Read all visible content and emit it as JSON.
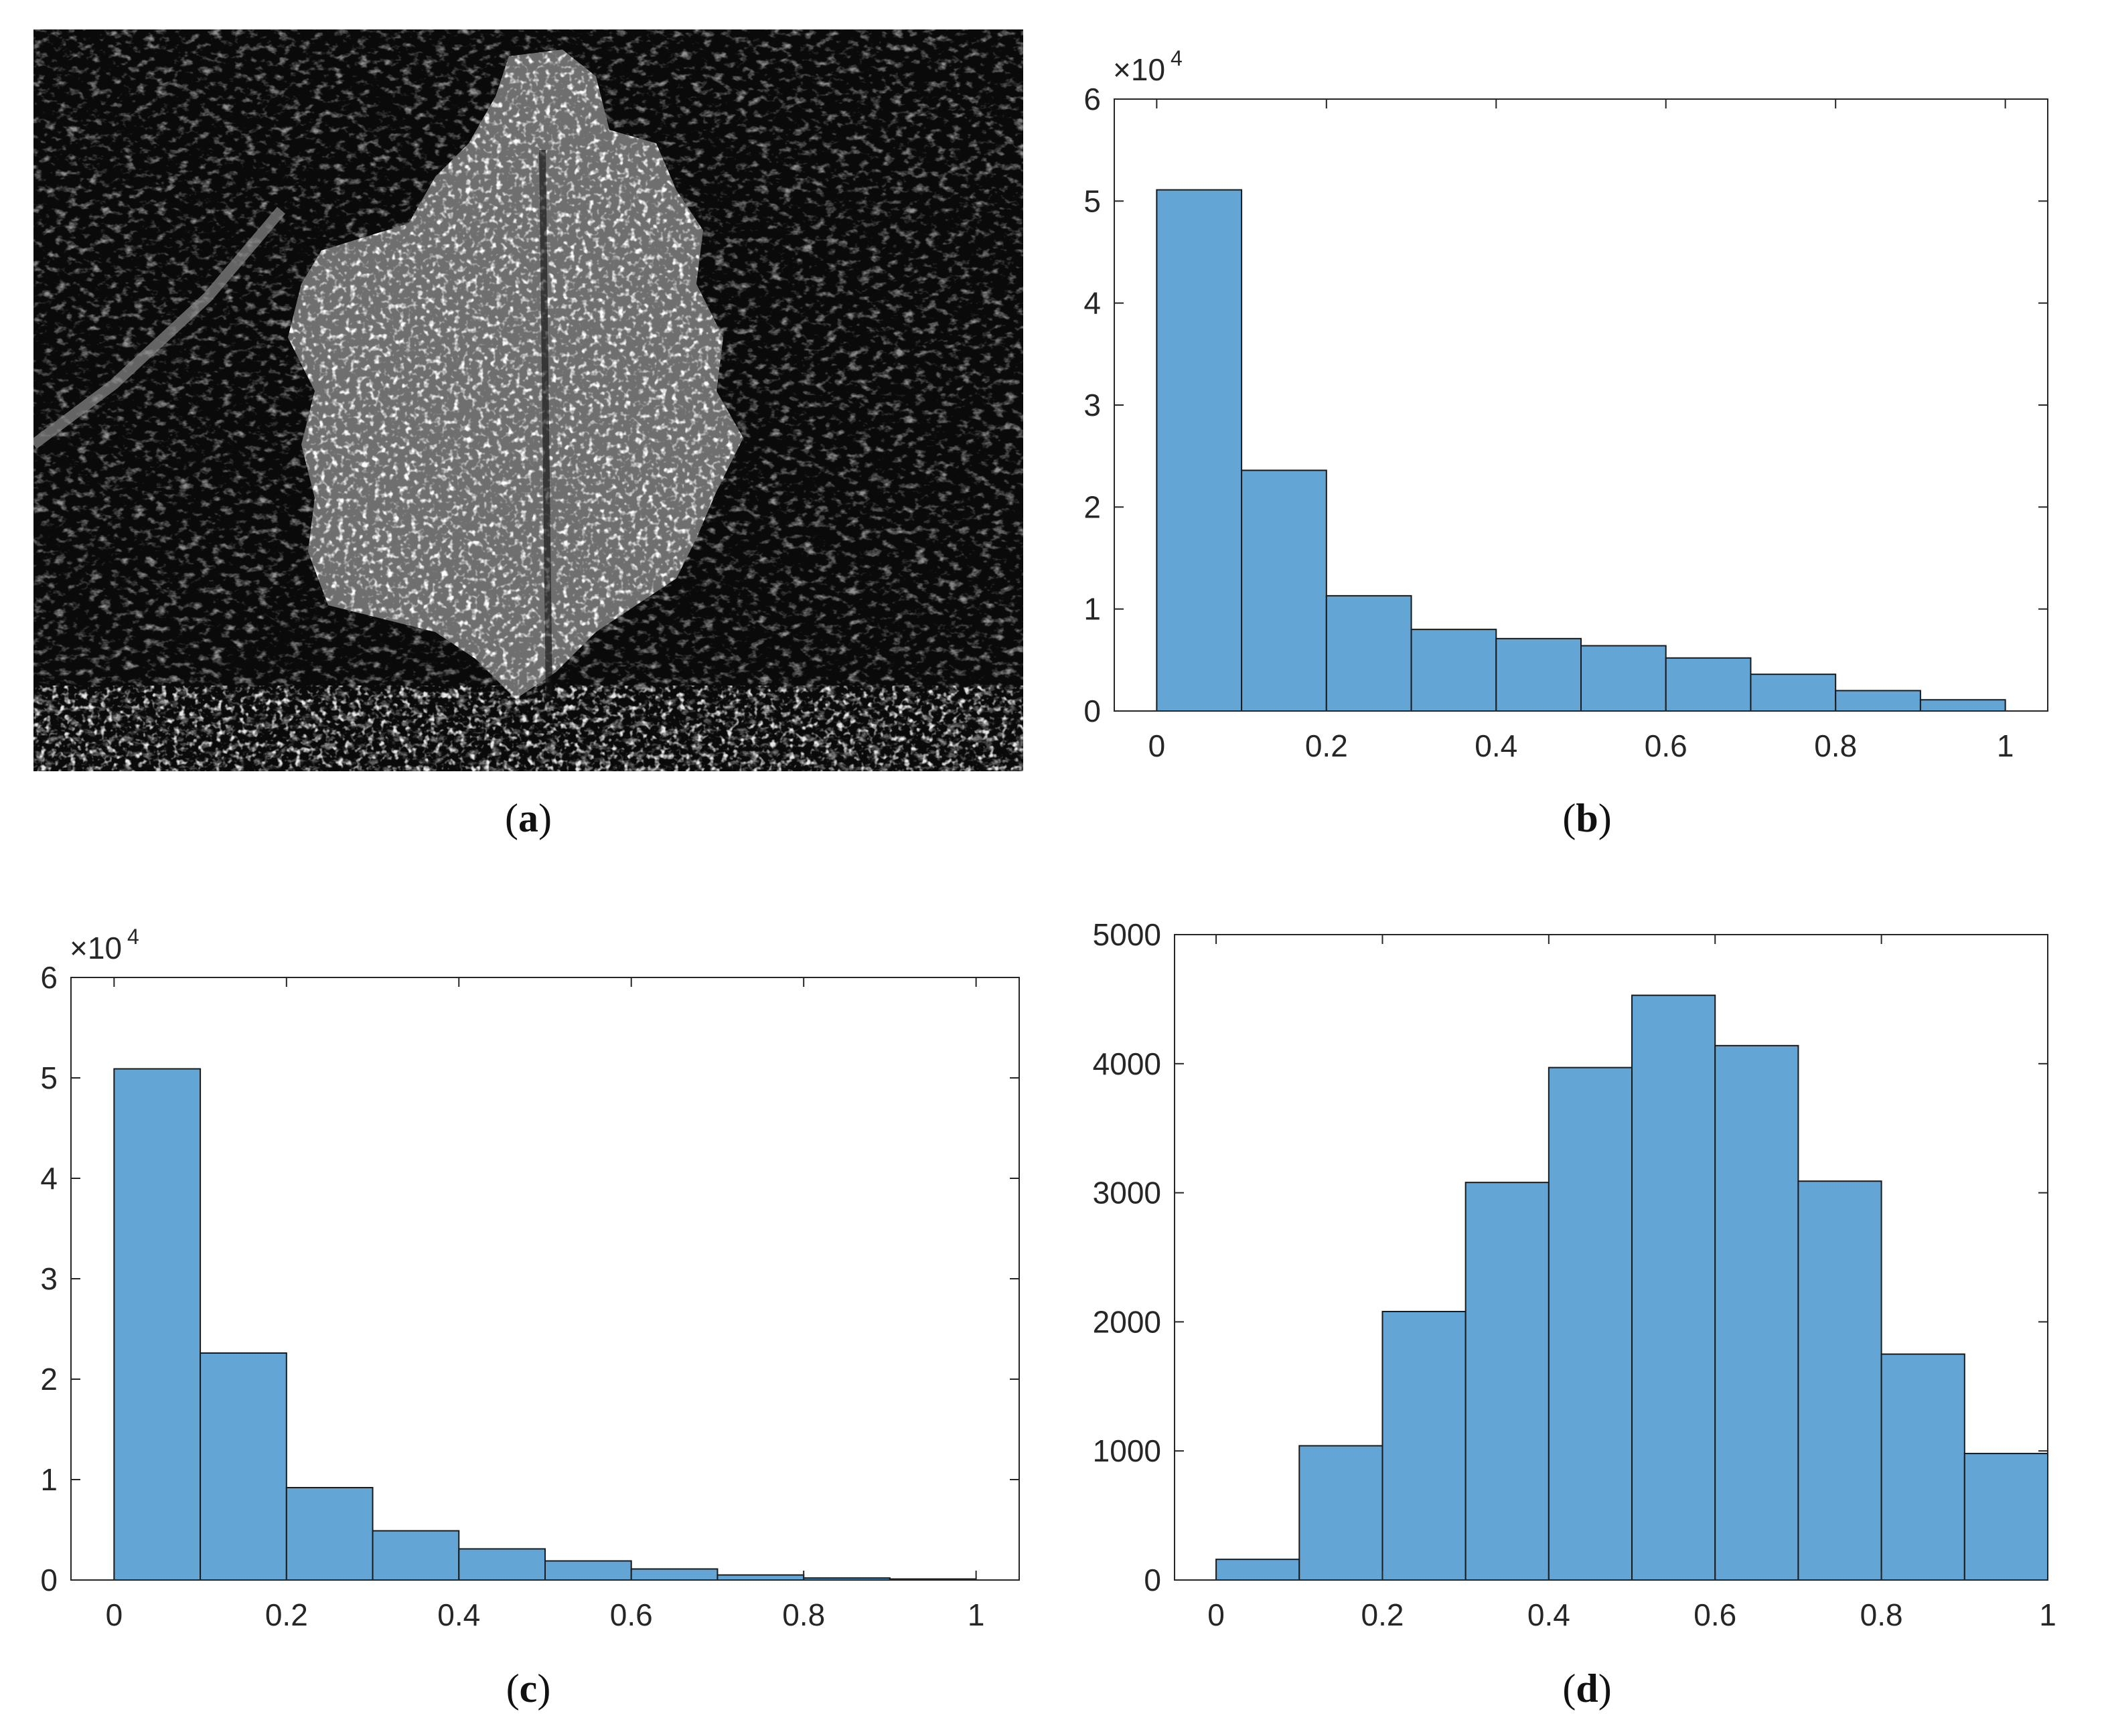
{
  "panels": {
    "a": {
      "caption_open": "(",
      "caption_letter": "a",
      "caption_close": ")"
    },
    "b": {
      "caption_open": "(",
      "caption_letter": "b",
      "caption_close": ")"
    },
    "c": {
      "caption_open": "(",
      "caption_letter": "c",
      "caption_close": ")"
    },
    "d": {
      "caption_open": "(",
      "caption_letter": "d",
      "caption_close": ")"
    }
  },
  "colors": {
    "bar_fill": "#63a6d6",
    "bar_edge": "#1a1a1a",
    "axis": "#262626"
  },
  "chart_data": [
    {
      "id": "b",
      "type": "bar",
      "title": "",
      "xlabel": "",
      "ylabel": "",
      "bin_edges": [
        0,
        0.1,
        0.2,
        0.3,
        0.4,
        0.5,
        0.6,
        0.7,
        0.8,
        0.9,
        1.0
      ],
      "values": [
        51100,
        23600,
        11300,
        8000,
        7100,
        6400,
        5200,
        3600,
        2000,
        1100
      ],
      "xlim": [
        -0.05,
        1.05
      ],
      "ylim": [
        0,
        60000
      ],
      "xticks": [
        0,
        0.2,
        0.4,
        0.6,
        0.8,
        1
      ],
      "xtick_labels": [
        "0",
        "0.2",
        "0.4",
        "0.6",
        "0.8",
        "1"
      ],
      "yticks": [
        0,
        10000,
        20000,
        30000,
        40000,
        50000,
        60000
      ],
      "ytick_labels": [
        "0",
        "1",
        "2",
        "3",
        "4",
        "5",
        "6"
      ],
      "exponent_label": "×10",
      "exponent_power": "4",
      "grid": false,
      "legend": "none"
    },
    {
      "id": "c",
      "type": "bar",
      "title": "",
      "xlabel": "",
      "ylabel": "",
      "bin_edges": [
        0,
        0.1,
        0.2,
        0.3,
        0.4,
        0.5,
        0.6,
        0.7,
        0.8,
        0.9,
        1.0
      ],
      "values": [
        50900,
        22600,
        9200,
        4900,
        3100,
        1900,
        1100,
        500,
        200,
        100
      ],
      "xlim": [
        -0.05,
        1.05
      ],
      "ylim": [
        0,
        60000
      ],
      "xticks": [
        0,
        0.2,
        0.4,
        0.6,
        0.8,
        1
      ],
      "xtick_labels": [
        "0",
        "0.2",
        "0.4",
        "0.6",
        "0.8",
        "1"
      ],
      "yticks": [
        0,
        10000,
        20000,
        30000,
        40000,
        50000,
        60000
      ],
      "ytick_labels": [
        "0",
        "1",
        "2",
        "3",
        "4",
        "5",
        "6"
      ],
      "exponent_label": "×10",
      "exponent_power": "4",
      "grid": false,
      "legend": "none"
    },
    {
      "id": "d",
      "type": "bar",
      "title": "",
      "xlabel": "",
      "ylabel": "",
      "bin_edges": [
        0,
        0.1,
        0.2,
        0.3,
        0.4,
        0.5,
        0.6,
        0.7,
        0.8,
        0.9,
        1.0
      ],
      "values": [
        160,
        1040,
        2080,
        3080,
        3970,
        4530,
        4140,
        3090,
        1750,
        980
      ],
      "xlim": [
        -0.05,
        1.0
      ],
      "ylim": [
        0,
        5000
      ],
      "xticks": [
        0,
        0.2,
        0.4,
        0.6,
        0.8,
        1
      ],
      "xtick_labels": [
        "0",
        "0.2",
        "0.4",
        "0.6",
        "0.8",
        "1"
      ],
      "yticks": [
        0,
        1000,
        2000,
        3000,
        4000,
        5000
      ],
      "ytick_labels": [
        "0",
        "1000",
        "2000",
        "3000",
        "4000",
        "5000"
      ],
      "exponent_label": "",
      "exponent_power": "",
      "grid": false,
      "legend": "none"
    }
  ]
}
